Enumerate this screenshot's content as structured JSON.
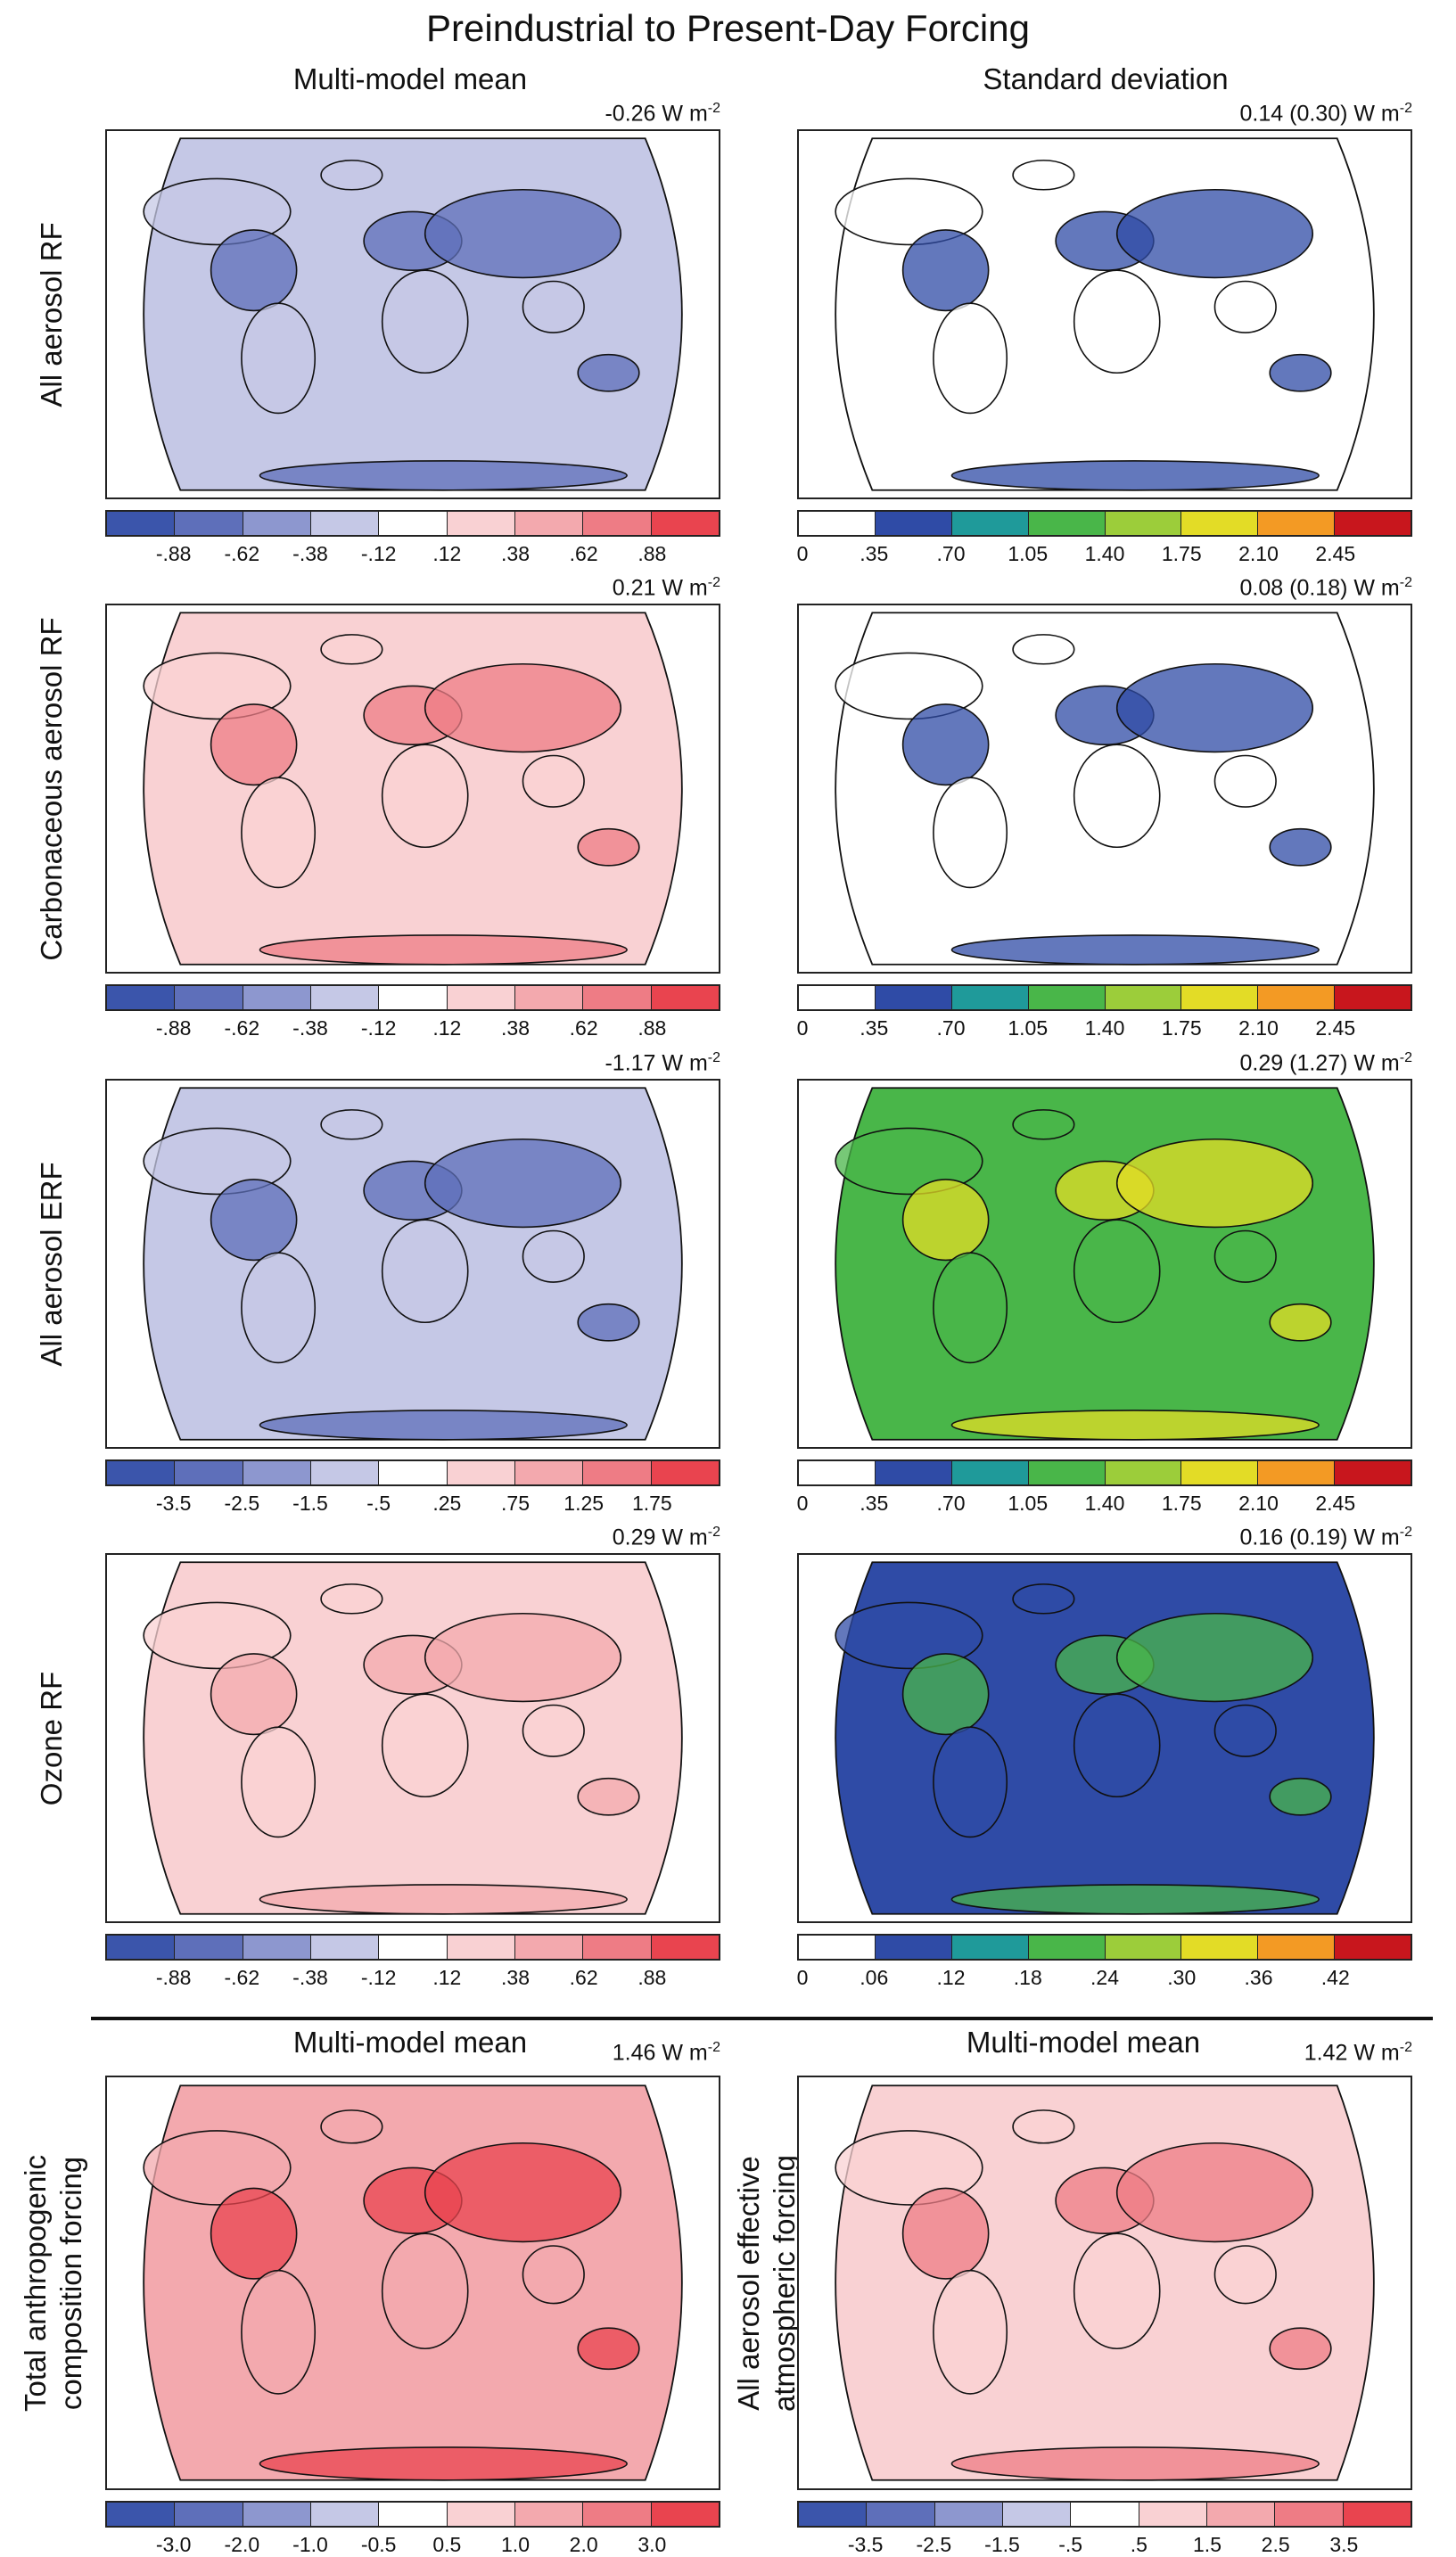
{
  "title": "Preindustrial to Present-Day Forcing",
  "column_headers": {
    "left": "Multi-model mean",
    "right": "Standard deviation",
    "bottom_left": "Multi-model mean",
    "bottom_right": "Multi-model mean"
  },
  "unit_text": "W m",
  "unit_exp": "-2",
  "palettes": {
    "diverging": [
      "#3b55ab",
      "#5e6fba",
      "#8d97cf",
      "#c5c8e6",
      "#ffffff",
      "#f9d1d3",
      "#f3a9ae",
      "#ee7c85",
      "#e9444f"
    ],
    "sequential": [
      "#ffffff",
      "#2f4ba6",
      "#1f9a9a",
      "#49b649",
      "#9ccd3a",
      "#e3dc26",
      "#f39a24",
      "#c8161d"
    ]
  },
  "rows": [
    {
      "label": "All aerosol RF",
      "left": {
        "value": "-0.26",
        "ticks": [
          "-.88",
          "-.62",
          "-.38",
          "-.12",
          ".12",
          ".38",
          ".62",
          ".88"
        ],
        "map_tint": "#c5c8e6",
        "map_accent": "#5e6fba"
      },
      "right": {
        "value": "0.14 (0.30)",
        "ticks": [
          "0",
          ".35",
          ".70",
          "1.05",
          "1.40",
          "1.75",
          "2.10",
          "2.45"
        ],
        "map_tint": "#ffffff",
        "map_accent": "#2f4ba6"
      }
    },
    {
      "label": "Carbonaceous aerosol RF",
      "left": {
        "value": "0.21",
        "ticks": [
          "-.88",
          "-.62",
          "-.38",
          "-.12",
          ".12",
          ".38",
          ".62",
          ".88"
        ],
        "map_tint": "#f9d1d3",
        "map_accent": "#ee7c85"
      },
      "right": {
        "value": "0.08 (0.18)",
        "ticks": [
          "0",
          ".35",
          ".70",
          "1.05",
          "1.40",
          "1.75",
          "2.10",
          "2.45"
        ],
        "map_tint": "#ffffff",
        "map_accent": "#2f4ba6"
      }
    },
    {
      "label": "All aerosol ERF",
      "left": {
        "value": "-1.17",
        "ticks": [
          "-3.5",
          "-2.5",
          "-1.5",
          "-.5",
          ".25",
          ".75",
          "1.25",
          "1.75"
        ],
        "map_tint": "#c5c8e6",
        "map_accent": "#5e6fba"
      },
      "right": {
        "value": "0.29 (1.27)",
        "ticks": [
          "0",
          ".35",
          ".70",
          "1.05",
          "1.40",
          "1.75",
          "2.10",
          "2.45"
        ],
        "map_tint": "#49b649",
        "map_accent": "#e3dc26"
      }
    },
    {
      "label": "Ozone RF",
      "left": {
        "value": "0.29",
        "ticks": [
          "-.88",
          "-.62",
          "-.38",
          "-.12",
          ".12",
          ".38",
          ".62",
          ".88"
        ],
        "map_tint": "#f9d1d3",
        "map_accent": "#f3a9ae"
      },
      "right": {
        "value": "0.16 (0.19)",
        "ticks": [
          "0",
          ".06",
          ".12",
          ".18",
          ".24",
          ".30",
          ".36",
          ".42"
        ],
        "map_tint": "#2f4ba6",
        "map_accent": "#49b649"
      }
    }
  ],
  "bottom": {
    "left": {
      "label_line1": "Total anthropogenic",
      "label_line2": "composition forcing",
      "value": "1.46",
      "ticks": [
        "-3.0",
        "-2.0",
        "-1.0",
        "-0.5",
        "0.5",
        "1.0",
        "2.0",
        "3.0"
      ],
      "map_tint": "#f3a9ae",
      "map_accent": "#e9444f"
    },
    "right": {
      "label_line1": "All aerosol effective",
      "label_line2": "atmospheric forcing",
      "value": "1.42",
      "ticks": [
        "-3.5",
        "-2.5",
        "-1.5",
        "-.5",
        ".5",
        "1.5",
        "2.5",
        "3.5"
      ],
      "map_tint": "#f9d1d3",
      "map_accent": "#ee7c85"
    }
  }
}
